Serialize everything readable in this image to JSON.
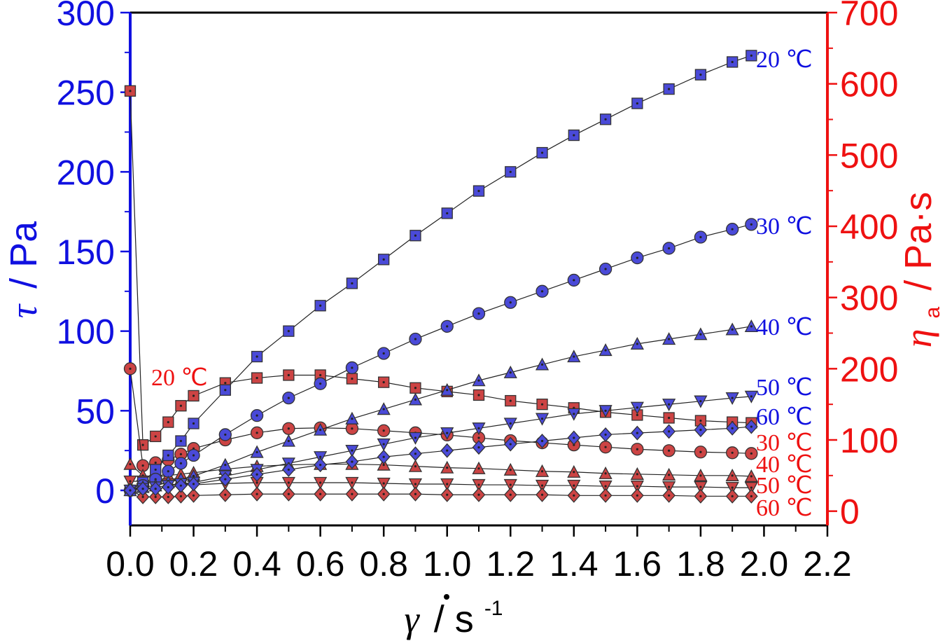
{
  "chart_data": {
    "type": "scatter",
    "x_axis": {
      "label_symbol": "γ",
      "label_unit": "/ s",
      "label_exp": "-1",
      "range": [
        0,
        2.2
      ],
      "ticks": [
        "0.0",
        "0.2",
        "0.4",
        "0.6",
        "0.8",
        "1.0",
        "1.2",
        "1.4",
        "1.6",
        "1.8",
        "2.0",
        "2.2"
      ]
    },
    "y_left": {
      "label_symbol": "τ",
      "label_unit": "/ Pa",
      "range": [
        -22,
        300
      ],
      "ticks": [
        "0",
        "50",
        "100",
        "150",
        "200",
        "250",
        "300"
      ],
      "color": "#1010e0"
    },
    "y_right": {
      "label_symbol": "η",
      "label_sub": "a",
      "label_unit": "/ Pa·s",
      "range": [
        -20,
        700
      ],
      "ticks": [
        "0",
        "100",
        "200",
        "300",
        "400",
        "500",
        "600",
        "700"
      ],
      "color": "#ee1111"
    },
    "colors": {
      "shear_stress": "#4a4ad8",
      "viscosity": "#cc4444"
    },
    "x": [
      0.0,
      0.04,
      0.08,
      0.12,
      0.16,
      0.2,
      0.3,
      0.4,
      0.5,
      0.6,
      0.7,
      0.8,
      0.9,
      1.0,
      1.1,
      1.2,
      1.3,
      1.4,
      1.5,
      1.6,
      1.7,
      1.8,
      1.9,
      1.96
    ],
    "shear_stress_series": [
      {
        "name": "20 ℃",
        "marker": "square",
        "values": [
          0,
          5,
          13,
          22,
          31,
          42,
          63,
          84,
          100,
          116,
          130,
          145,
          160,
          174,
          188,
          200,
          212,
          223,
          233,
          243,
          252,
          261,
          269,
          273
        ]
      },
      {
        "name": "30 ℃",
        "marker": "circle",
        "values": [
          0,
          3,
          7,
          12,
          17,
          22,
          35,
          47,
          58,
          67,
          77,
          86,
          95,
          103,
          111,
          118,
          125,
          132,
          139,
          146,
          152,
          159,
          164,
          167
        ]
      },
      {
        "name": "40 ℃",
        "marker": "triangle-up",
        "values": [
          0,
          2,
          3,
          5,
          7,
          9,
          16,
          24,
          31,
          38,
          45,
          51,
          57,
          63,
          69,
          74,
          79,
          84,
          88,
          92,
          95,
          98,
          101,
          103
        ]
      },
      {
        "name": "50 ℃",
        "marker": "triangle-down",
        "values": [
          0,
          1,
          2,
          3,
          4,
          5,
          9,
          13,
          17,
          21,
          25,
          29,
          33,
          36,
          39,
          42,
          45,
          48,
          50,
          52,
          54,
          56,
          58,
          59
        ]
      },
      {
        "name": "60 ℃",
        "marker": "diamond",
        "values": [
          0,
          1,
          1,
          2,
          3,
          4,
          7,
          10,
          13,
          16,
          18,
          21,
          23,
          25,
          27,
          29,
          31,
          33,
          35,
          36,
          37,
          38,
          39,
          40
        ]
      }
    ],
    "viscosity_series": [
      {
        "name": "20 ℃",
        "marker": "square",
        "values": [
          590,
          93,
          105,
          125,
          148,
          162,
          180,
          187,
          191,
          191,
          186,
          181,
          173,
          168,
          163,
          155,
          150,
          145,
          139,
          135,
          131,
          127,
          125,
          124
        ]
      },
      {
        "name": "30 ℃",
        "marker": "circle",
        "values": [
          200,
          64,
          68,
          72,
          80,
          88,
          100,
          110,
          116,
          117,
          116,
          113,
          110,
          107,
          103,
          99,
          96,
          93,
          90,
          87,
          85,
          83,
          82,
          81
        ]
      },
      {
        "name": "40 ℃",
        "marker": "triangle-up",
        "values": [
          66,
          50,
          48,
          50,
          52,
          54,
          59,
          63,
          65,
          66,
          66,
          65,
          63,
          61,
          60,
          58,
          56,
          55,
          53,
          52,
          51,
          50,
          50,
          49
        ]
      },
      {
        "name": "50 ℃",
        "marker": "triangle-down",
        "values": [
          42,
          42,
          40,
          38,
          37,
          37,
          39,
          40,
          40,
          40,
          40,
          39,
          38,
          38,
          37,
          37,
          36,
          36,
          35,
          35,
          34,
          34,
          33,
          33
        ]
      },
      {
        "name": "60 ℃",
        "marker": "diamond",
        "values": [
          30,
          20,
          20,
          20,
          21,
          22,
          23,
          24,
          24,
          24,
          24,
          24,
          24,
          23,
          23,
          23,
          23,
          22,
          22,
          22,
          22,
          21,
          21,
          21
        ]
      }
    ],
    "inline_labels": {
      "shear_stress": [
        "20 ℃",
        "30 ℃",
        "40 ℃",
        "50 ℃",
        "60 ℃"
      ],
      "viscosity": [
        "20 ℃",
        "30 ℃",
        "40 ℃",
        "50 ℃",
        "60 ℃"
      ]
    }
  }
}
